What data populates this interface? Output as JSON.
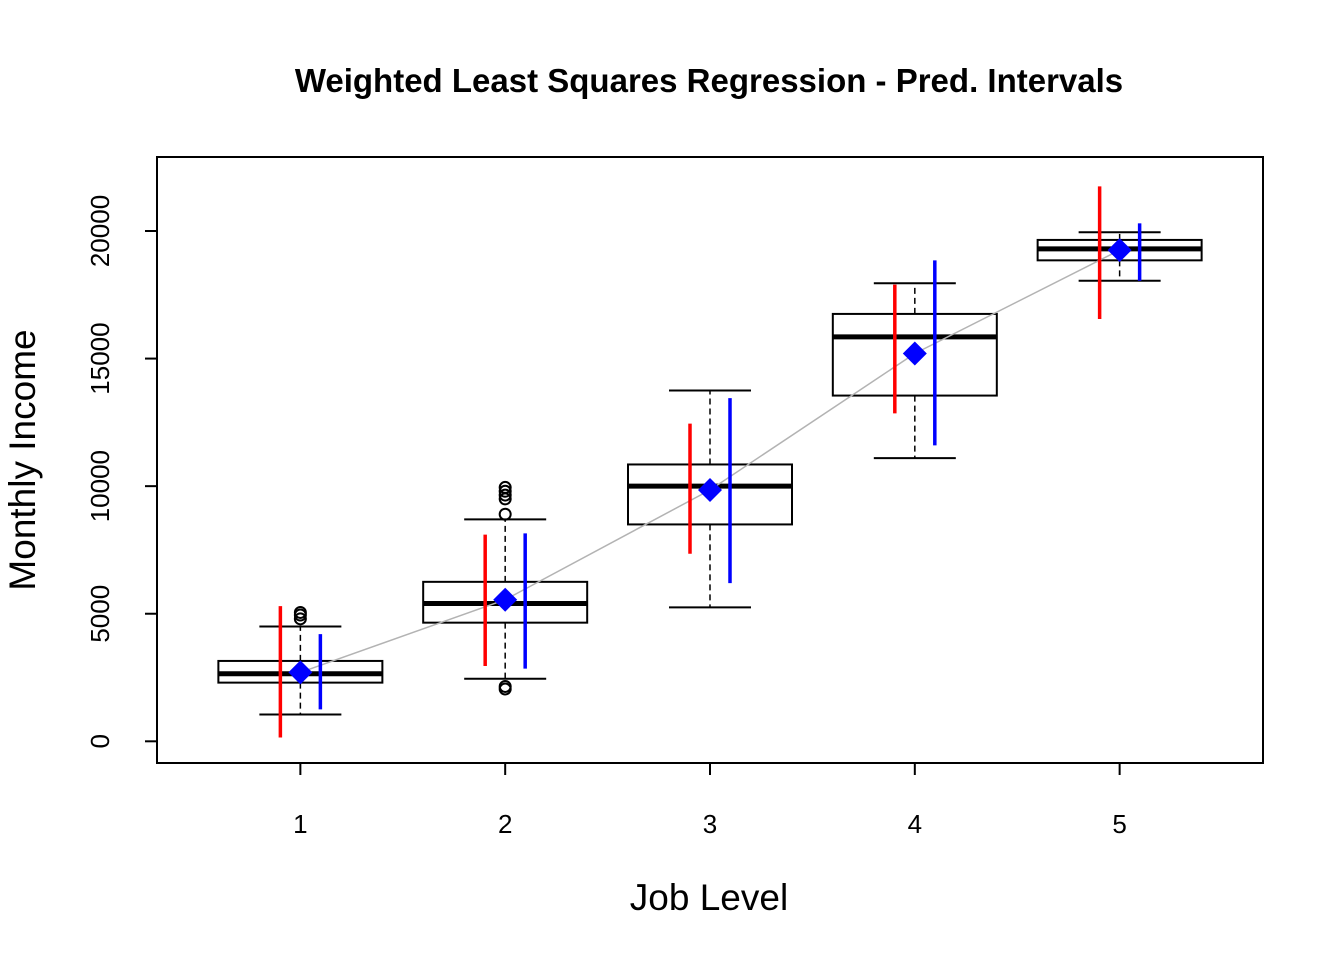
{
  "chart_data": {
    "type": "boxplot",
    "title": "Weighted Least Squares Regression - Pred. Intervals",
    "xlabel": "Job Level",
    "ylabel": "Monthly Income",
    "categories": [
      "1",
      "2",
      "3",
      "4",
      "5"
    ],
    "yticks": [
      "0",
      "5000",
      "10000",
      "15000",
      "20000"
    ],
    "ylim": [
      -850,
      22900
    ],
    "xlim": [
      0.3,
      5.7
    ],
    "grid": false,
    "legend": "none",
    "boxes": [
      {
        "category": "1",
        "whisker_low": 1050,
        "q1": 2300,
        "median": 2650,
        "q3": 3150,
        "whisker_high": 4500,
        "outliers": [
          4800,
          4950,
          5050
        ]
      },
      {
        "category": "2",
        "whisker_low": 2450,
        "q1": 4650,
        "median": 5400,
        "q3": 6250,
        "whisker_high": 8700,
        "outliers": [
          2050,
          2150,
          8900,
          9500,
          9650,
          9800,
          9950
        ]
      },
      {
        "category": "3",
        "whisker_low": 5250,
        "q1": 8500,
        "median": 10000,
        "q3": 10850,
        "whisker_high": 13750,
        "outliers": []
      },
      {
        "category": "4",
        "whisker_low": 11100,
        "q1": 13550,
        "median": 15850,
        "q3": 16750,
        "whisker_high": 17950,
        "outliers": []
      },
      {
        "category": "5",
        "whisker_low": 18050,
        "q1": 18850,
        "median": 19300,
        "q3": 19650,
        "whisker_high": 19950,
        "outliers": []
      }
    ],
    "series": [
      {
        "kind": "fitted",
        "values": [
          2700,
          5550,
          9850,
          15200,
          19250
        ]
      },
      {
        "kind": "interval-a",
        "lower": [
          150,
          2950,
          7350,
          12850,
          16550
        ],
        "upper": [
          5300,
          8100,
          12450,
          17900,
          21750
        ]
      },
      {
        "kind": "interval-b",
        "lower": [
          1250,
          2850,
          6200,
          11600,
          18050
        ],
        "upper": [
          4200,
          8150,
          13450,
          18850,
          20300
        ]
      }
    ],
    "colors": {
      "fitted_points": "#0000ff",
      "fit_line": "#b3b3b3",
      "interval_a": "#ff0000",
      "interval_b": "#0000ff",
      "box": "#000000"
    }
  }
}
